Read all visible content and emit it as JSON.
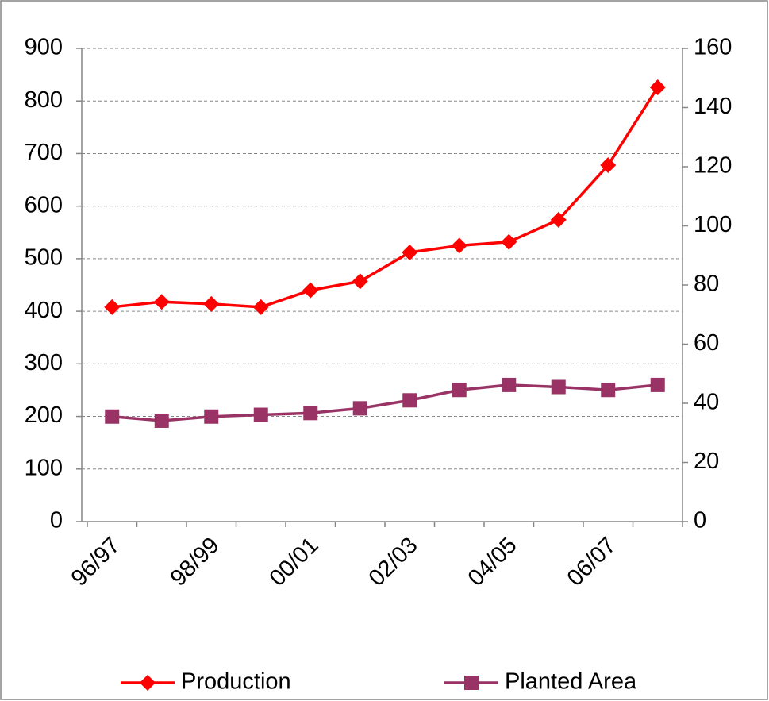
{
  "chart_data": {
    "type": "line",
    "categories": [
      "96/97",
      null,
      "98/99",
      null,
      "00/01",
      null,
      "02/03",
      null,
      "04/05",
      null,
      "06/07",
      null
    ],
    "series": [
      {
        "name": "Production",
        "color": "#ff0000",
        "marker": "diamond",
        "axis": "y",
        "values": [
          408,
          418,
          414,
          408,
          440,
          457,
          512,
          525,
          532,
          574,
          678,
          826
        ]
      },
      {
        "name": "Planted Area",
        "color": "#993366",
        "marker": "square",
        "axis": "y2",
        "values": [
          35.5,
          34.1,
          35.5,
          36.1,
          36.7,
          38.3,
          41,
          44.5,
          46.2,
          45.5,
          44.5,
          46.2
        ]
      }
    ],
    "ylim": [
      0,
      900
    ],
    "yticks": [
      0,
      100,
      200,
      300,
      400,
      500,
      600,
      700,
      800,
      900
    ],
    "y2lim": [
      0,
      160
    ],
    "y2ticks": [
      0,
      20,
      40,
      60,
      80,
      100,
      120,
      140,
      160
    ],
    "grid": true,
    "legend": "bottom"
  }
}
